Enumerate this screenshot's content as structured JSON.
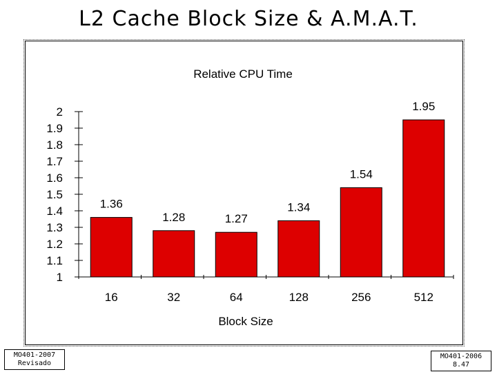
{
  "slide": {
    "title": "L2 Cache Block Size & A.M.A.T."
  },
  "footer": {
    "left_line1": "MO401-2007",
    "left_line2": "Revisado",
    "right_line1": "MO401-2006",
    "right_line2": "8.47"
  },
  "chart_data": {
    "type": "bar",
    "title": "Relative CPU Time",
    "xlabel": "Block Size",
    "ylabel": "",
    "categories": [
      "16",
      "32",
      "64",
      "128",
      "256",
      "512"
    ],
    "values": [
      1.36,
      1.28,
      1.27,
      1.34,
      1.54,
      1.95
    ],
    "value_labels": [
      "1.36",
      "1.28",
      "1.27",
      "1.34",
      "1.54",
      "1.95"
    ],
    "y_ticks": [
      "2",
      "1.9",
      "1.8",
      "1.7",
      "1.6",
      "1.5",
      "1.4",
      "1.3",
      "1.2",
      "1.1",
      "1"
    ],
    "ylim": [
      1,
      2
    ],
    "grid": false,
    "legend": "none",
    "bar_color": "#dd0000"
  }
}
